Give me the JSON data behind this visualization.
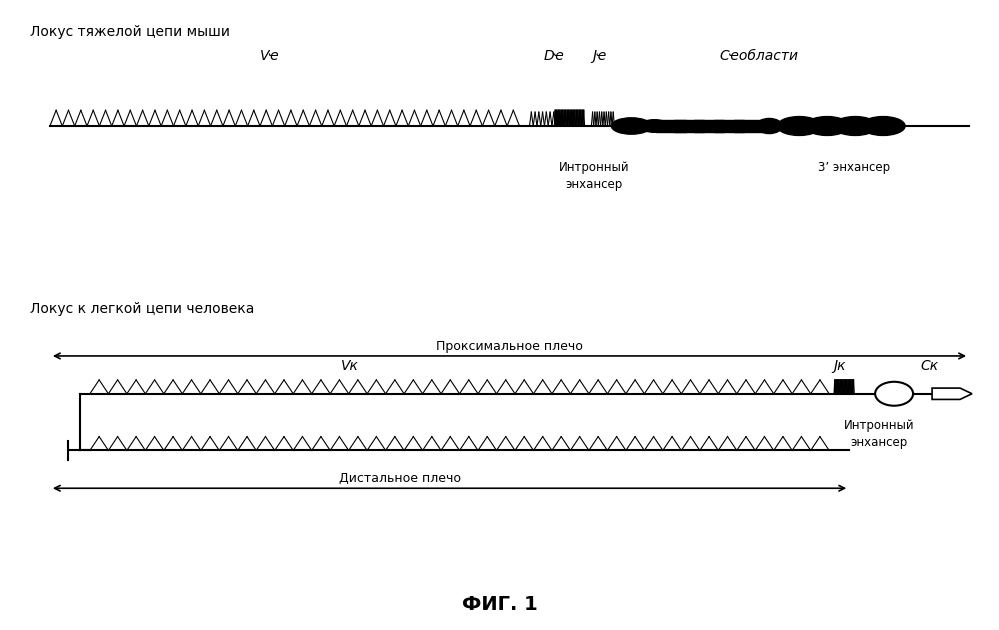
{
  "title_top": "Локус тяжелой цепи мыши",
  "title_bottom": "Локус к легкой цепи человека",
  "fig_label": "ФИГ. 1",
  "label_VH": "Vҽ",
  "label_DH": "Dҽ",
  "label_JH": "Jҽ",
  "label_CH": "Cҽобласти",
  "label_intronic_enh1": "Интронный\nэнхансер",
  "label_3prime": "3’ энхансер",
  "label_VK": "Vк",
  "label_JK": "Jк",
  "label_CK": "Cк",
  "label_intronic_enh2": "Интронный\nэнхансер",
  "label_prox": "Проксимальное плечо",
  "label_dist": "Дистальное плечо",
  "bg_color": "#ffffff",
  "line_color": "#000000",
  "text_color": "#000000"
}
